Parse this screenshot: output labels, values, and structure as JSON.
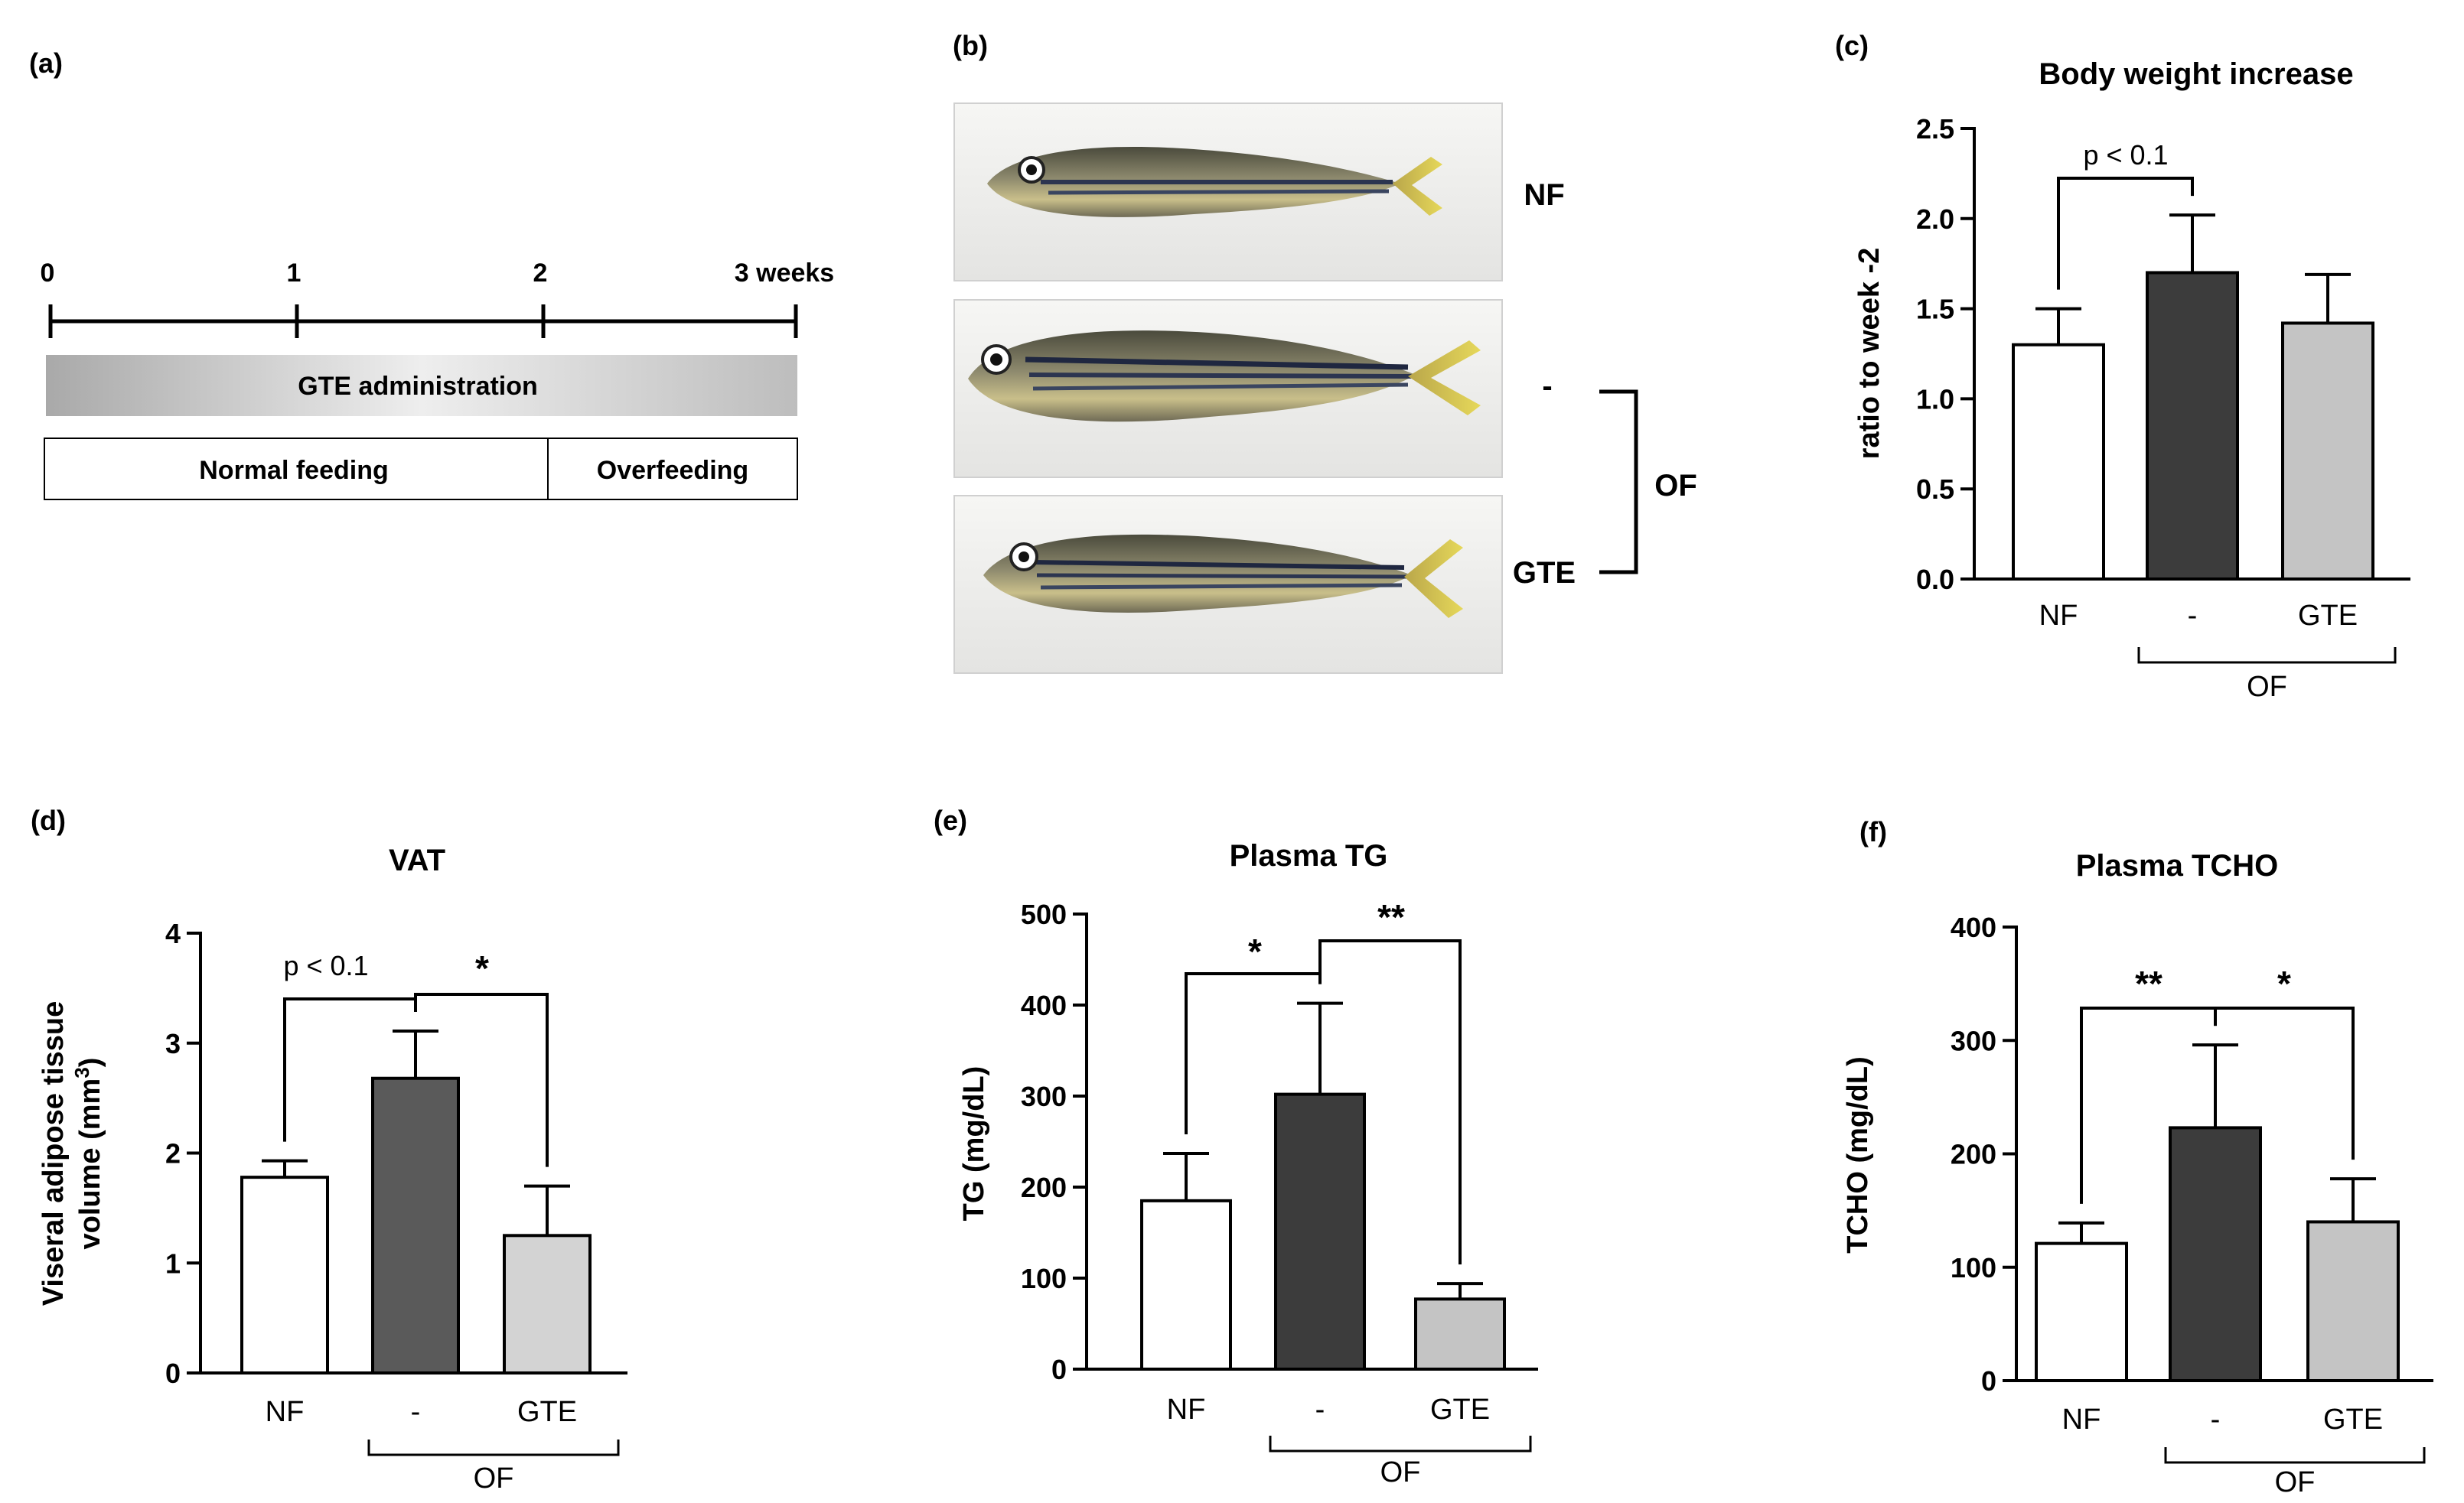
{
  "panel_labels": {
    "a": "(a)",
    "b": "(b)",
    "c": "(c)",
    "d": "(d)",
    "e": "(e)",
    "f": "(f)"
  },
  "timeline": {
    "ticks": [
      "0",
      "1",
      "2",
      "3 weeks"
    ],
    "administration": "GTE administration",
    "phase_normal": "Normal feeding",
    "phase_over": "Overfeeding"
  },
  "photos": {
    "labels": {
      "nf": "NF",
      "minus": "-",
      "gte": "GTE",
      "group": "OF"
    }
  },
  "colors": {
    "nf": "#ffffff",
    "minus_dark": "#3c3c3c",
    "minus_vat": "#5a5a5a",
    "gte": "#c4c4c4",
    "gte_light": "#d3d3d3"
  },
  "chart_data": [
    {
      "id": "c",
      "type": "bar",
      "title": "Body weight increase",
      "ylabel": "ratio to week -2",
      "xlabel": "",
      "ylim": [
        0,
        2.5
      ],
      "yticks": [
        "0.0",
        "0.5",
        "1.0",
        "1.5",
        "2.0",
        "2.5"
      ],
      "categories": [
        "NF",
        "-",
        "GTE"
      ],
      "values": [
        1.3,
        1.7,
        1.42
      ],
      "errors": [
        0.2,
        0.32,
        0.27
      ],
      "group_label": "OF",
      "annotations": [
        {
          "text": "p < 0.1",
          "from": 0,
          "to": 1
        }
      ]
    },
    {
      "id": "d",
      "type": "bar",
      "title": "VAT",
      "ylabel_line1": "Viseral adipose tissue",
      "ylabel_line2": "volume (mm",
      "ylabel_sup": "3",
      "ylabel_close": ")",
      "xlabel": "",
      "ylim": [
        0,
        4
      ],
      "yticks": [
        "0",
        "1",
        "2",
        "3",
        "4"
      ],
      "categories": [
        "NF",
        "-",
        "GTE"
      ],
      "values": [
        1.78,
        2.68,
        1.25
      ],
      "errors": [
        0.15,
        0.43,
        0.45
      ],
      "group_label": "OF",
      "annotations": [
        {
          "text": "p < 0.1",
          "from": 0,
          "to": 1
        },
        {
          "text": "*",
          "from": 1,
          "to": 2
        }
      ]
    },
    {
      "id": "e",
      "type": "bar",
      "title": "Plasma TG",
      "ylabel": "TG (mg/dL)",
      "xlabel": "",
      "ylim": [
        0,
        500
      ],
      "yticks": [
        "0",
        "100",
        "200",
        "300",
        "400",
        "500"
      ],
      "categories": [
        "NF",
        "-",
        "GTE"
      ],
      "values": [
        185,
        302,
        77
      ],
      "errors": [
        52,
        100,
        17
      ],
      "group_label": "OF",
      "annotations": [
        {
          "text": "*",
          "from": 0,
          "to": 1
        },
        {
          "text": "**",
          "from": 1,
          "to": 2
        }
      ]
    },
    {
      "id": "f",
      "type": "bar",
      "title": "Plasma TCHO",
      "ylabel": "TCHO (mg/dL)",
      "xlabel": "",
      "ylim": [
        0,
        400
      ],
      "yticks": [
        "0",
        "100",
        "200",
        "300",
        "400"
      ],
      "categories": [
        "NF",
        "-",
        "GTE"
      ],
      "values": [
        121,
        223,
        140
      ],
      "errors": [
        18,
        73,
        38
      ],
      "group_label": "OF",
      "annotations": [
        {
          "text": "**",
          "from": 0,
          "to": 1
        },
        {
          "text": "*",
          "from": 1,
          "to": 2
        }
      ]
    }
  ]
}
